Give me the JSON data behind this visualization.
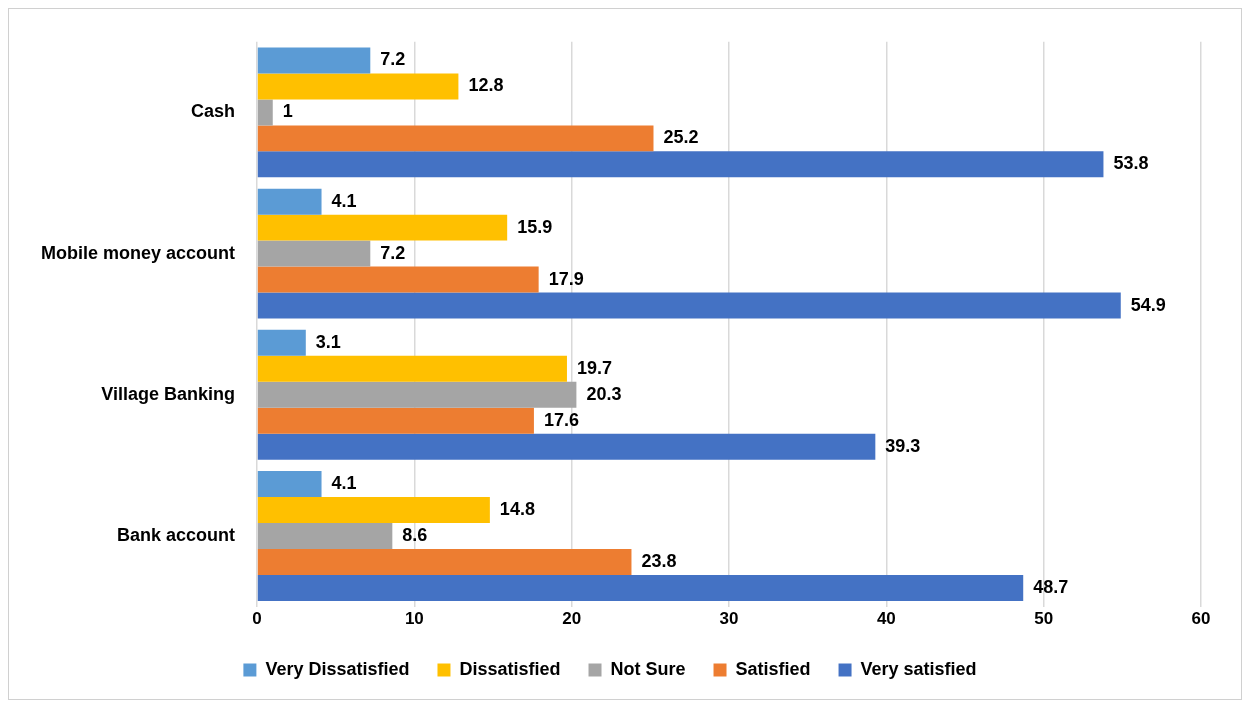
{
  "chart_data": {
    "type": "bar",
    "orientation": "horizontal",
    "categories": [
      "Cash",
      "Mobile money account",
      "Village Banking",
      "Bank account"
    ],
    "series": [
      {
        "name": "Very Dissatisfied",
        "color": "#5b9bd5",
        "values": [
          7.2,
          4.1,
          3.1,
          4.1
        ]
      },
      {
        "name": "Dissatisfied",
        "color": "#ffc000",
        "values": [
          12.8,
          15.9,
          19.7,
          14.8
        ]
      },
      {
        "name": "Not Sure",
        "color": "#a5a5a5",
        "values": [
          1,
          7.2,
          20.3,
          8.6
        ]
      },
      {
        "name": "Satisfied",
        "color": "#ed7d31",
        "values": [
          25.2,
          17.9,
          17.6,
          23.8
        ]
      },
      {
        "name": "Very satisfied",
        "color": "#4472c4",
        "values": [
          53.8,
          54.9,
          39.3,
          48.7
        ]
      }
    ],
    "xlim": [
      0,
      60
    ],
    "xticks": [
      0,
      10,
      20,
      30,
      40,
      50,
      60
    ],
    "grid": "x",
    "legend": "bottom",
    "data_labels": true
  }
}
